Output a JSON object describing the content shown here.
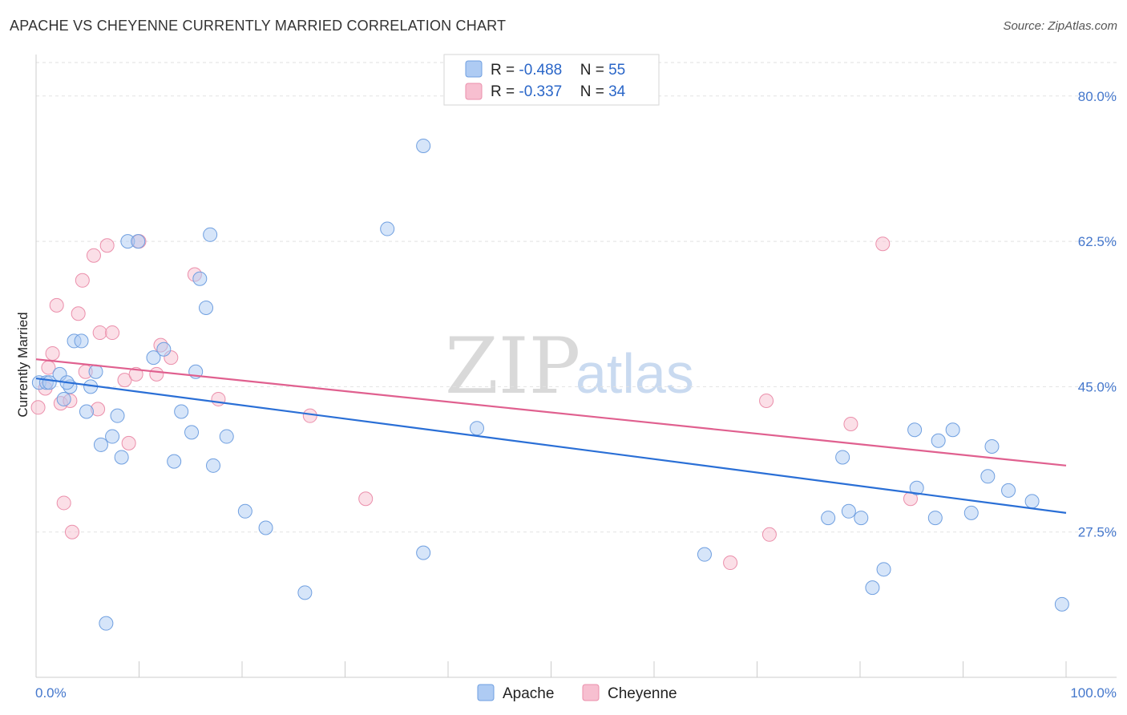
{
  "header": {
    "title": "APACHE VS CHEYENNE CURRENTLY MARRIED CORRELATION CHART",
    "source": "Source: ZipAtlas.com"
  },
  "watermark": {
    "zip": "ZIP",
    "atlas": "atlas"
  },
  "legend": {
    "rows": [
      {
        "r_label": "R = ",
        "r_value": "-0.488",
        "n_label": "N = ",
        "n_value": "55",
        "color": "#aecbf3"
      },
      {
        "r_label": "R = ",
        "r_value": "-0.337",
        "n_label": "N = ",
        "n_value": "34",
        "color": "#f7bfd0"
      }
    ]
  },
  "chart_data": {
    "type": "scatter",
    "title": "APACHE VS CHEYENNE CURRENTLY MARRIED CORRELATION CHART",
    "xlabel": "",
    "ylabel": "Currently Married",
    "xlim": [
      0,
      100
    ],
    "ylim": [
      10,
      85
    ],
    "x_tick_labels": [
      "0.0%",
      "100.0%"
    ],
    "y_ticks": [
      {
        "value": 27.5,
        "label": "27.5%"
      },
      {
        "value": 45.0,
        "label": "45.0%"
      },
      {
        "value": 62.5,
        "label": "62.5%"
      },
      {
        "value": 80.0,
        "label": "80.0%"
      }
    ],
    "grid": true,
    "legend_position": "top-center",
    "series": [
      {
        "name": "Apache",
        "color": "#aecbf3",
        "stroke": "#6f9fe0",
        "trend_color": "#2a6fd6",
        "trend": {
          "x": [
            0,
            100
          ],
          "y": [
            46.0,
            29.8
          ]
        },
        "points": [
          [
            0.3,
            45.5
          ],
          [
            1.0,
            45.5
          ],
          [
            1.3,
            45.5
          ],
          [
            2.3,
            46.5
          ],
          [
            2.7,
            43.5
          ],
          [
            3.3,
            45.0
          ],
          [
            3.7,
            50.5
          ],
          [
            4.4,
            50.5
          ],
          [
            4.9,
            42.0
          ],
          [
            5.3,
            45.0
          ],
          [
            5.8,
            46.8
          ],
          [
            6.3,
            38.0
          ],
          [
            6.8,
            16.5
          ],
          [
            7.4,
            39.0
          ],
          [
            7.9,
            41.5
          ],
          [
            8.3,
            36.5
          ],
          [
            8.9,
            62.5
          ],
          [
            9.9,
            62.5
          ],
          [
            11.4,
            48.5
          ],
          [
            12.4,
            49.5
          ],
          [
            13.4,
            36.0
          ],
          [
            14.1,
            42.0
          ],
          [
            15.1,
            39.5
          ],
          [
            15.5,
            46.8
          ],
          [
            15.9,
            58.0
          ],
          [
            16.5,
            54.5
          ],
          [
            16.9,
            63.3
          ],
          [
            17.2,
            35.5
          ],
          [
            18.5,
            39.0
          ],
          [
            20.3,
            30.0
          ],
          [
            22.3,
            28.0
          ],
          [
            26.1,
            20.2
          ],
          [
            34.1,
            64.0
          ],
          [
            37.6,
            74.0
          ],
          [
            37.6,
            25.0
          ],
          [
            42.8,
            40.0
          ],
          [
            64.9,
            24.8
          ],
          [
            76.9,
            29.2
          ],
          [
            78.3,
            36.5
          ],
          [
            78.9,
            30.0
          ],
          [
            80.1,
            29.2
          ],
          [
            81.2,
            20.8
          ],
          [
            82.3,
            23.0
          ],
          [
            85.3,
            39.8
          ],
          [
            85.5,
            32.8
          ],
          [
            87.3,
            29.2
          ],
          [
            87.6,
            38.5
          ],
          [
            89.0,
            39.8
          ],
          [
            90.8,
            29.8
          ],
          [
            92.8,
            37.8
          ],
          [
            94.4,
            32.5
          ],
          [
            96.7,
            31.2
          ],
          [
            99.6,
            18.8
          ],
          [
            92.4,
            34.2
          ],
          [
            3.0,
            45.5
          ]
        ]
      },
      {
        "name": "Cheyenne",
        "color": "#f7bfd0",
        "stroke": "#eb8fab",
        "trend_color": "#e0608f",
        "trend": {
          "x": [
            0,
            100
          ],
          "y": [
            48.3,
            35.5
          ]
        },
        "points": [
          [
            0.2,
            42.5
          ],
          [
            0.9,
            44.8
          ],
          [
            1.2,
            47.3
          ],
          [
            1.6,
            49.0
          ],
          [
            2.0,
            54.8
          ],
          [
            2.4,
            43.0
          ],
          [
            2.7,
            31.0
          ],
          [
            3.3,
            43.3
          ],
          [
            3.5,
            27.5
          ],
          [
            4.1,
            53.8
          ],
          [
            4.5,
            57.8
          ],
          [
            4.8,
            46.8
          ],
          [
            5.6,
            60.8
          ],
          [
            6.0,
            42.3
          ],
          [
            6.2,
            51.5
          ],
          [
            6.9,
            62.0
          ],
          [
            7.4,
            51.5
          ],
          [
            8.6,
            45.8
          ],
          [
            9.0,
            38.2
          ],
          [
            9.7,
            46.5
          ],
          [
            10.0,
            62.5
          ],
          [
            11.7,
            46.5
          ],
          [
            12.1,
            50.0
          ],
          [
            13.1,
            48.5
          ],
          [
            15.4,
            58.5
          ],
          [
            17.7,
            43.5
          ],
          [
            26.6,
            41.5
          ],
          [
            32.0,
            31.5
          ],
          [
            67.4,
            23.8
          ],
          [
            71.2,
            27.2
          ],
          [
            70.9,
            43.3
          ],
          [
            79.1,
            40.5
          ],
          [
            82.2,
            62.2
          ],
          [
            84.9,
            31.5
          ]
        ]
      }
    ]
  }
}
